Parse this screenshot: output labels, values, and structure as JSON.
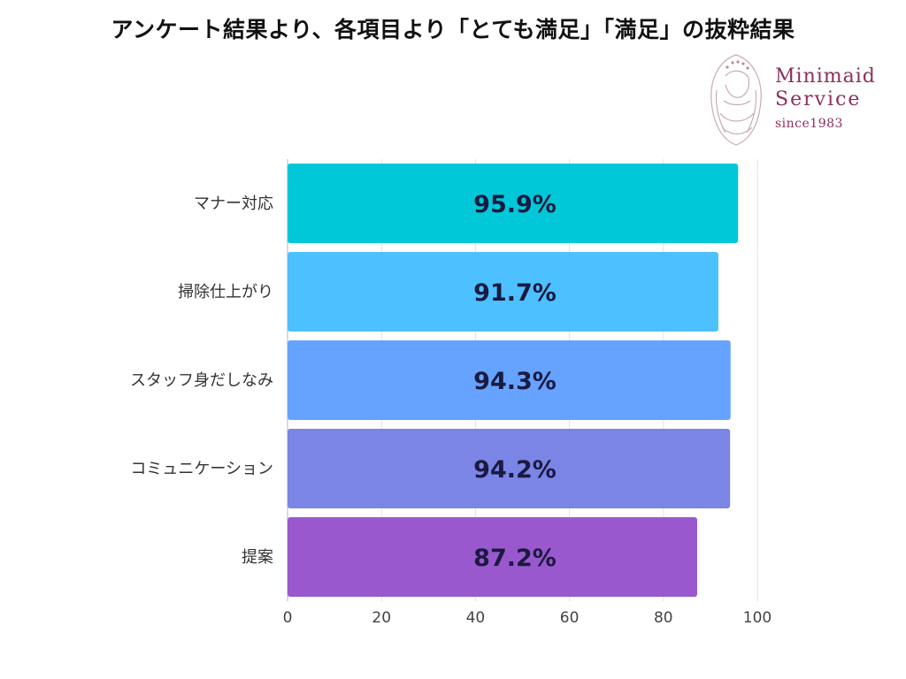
{
  "title": "アンケート結果より、各項目より「とても満足」「満足」の抜粋結果",
  "logo": {
    "name_line1": "Minimaid",
    "name_line2": "Service",
    "tagline": "since1983",
    "color": "#8e2f5c",
    "icon": "woman-portrait-emblem-icon"
  },
  "chart_data": {
    "type": "bar",
    "orientation": "horizontal",
    "title": "アンケート結果より、各項目より「とても満足」「満足」の抜粋結果",
    "categories": [
      "マナー対応",
      "掃除仕上がり",
      "スタッフ身だしなみ",
      "コミュニケーション",
      "提案"
    ],
    "values": [
      95.9,
      91.7,
      94.3,
      94.2,
      87.2
    ],
    "value_labels": [
      "95.9%",
      "91.7%",
      "94.3%",
      "94.2%",
      "87.2%"
    ],
    "colors": [
      "#00c8d9",
      "#4dc0ff",
      "#66a2ff",
      "#7b85e6",
      "#9a58cf"
    ],
    "xlim": [
      0,
      100
    ],
    "xticks": [
      0,
      20,
      40,
      60,
      80,
      100
    ],
    "xlabel": "",
    "ylabel": "",
    "grid": true,
    "legend": "none"
  }
}
